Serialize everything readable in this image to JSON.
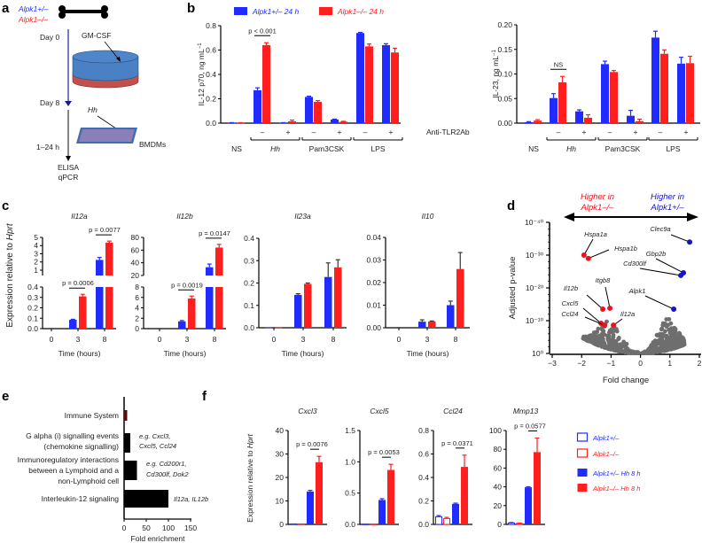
{
  "panel_labels": {
    "a": "a",
    "b": "b",
    "c": "c",
    "d": "d",
    "e": "e",
    "f": "f"
  },
  "colors": {
    "het": "#1f2bff",
    "ko": "#ff1f1f",
    "gray": "#6e6e6e",
    "axis": "#000000",
    "error_dark": "#333333",
    "dish_blue": "#4a80c4",
    "dish_red": "#c2504d",
    "timeline_purple": "#4d4fa3",
    "plate": "#8a7fb8",
    "immune_bar": "#5a0c0c",
    "volcano_red": "#e8141e",
    "volcano_blue": "#1414c8"
  },
  "panel_a": {
    "genotypes": [
      "Alpk1+/–",
      "Alpk1–/–"
    ],
    "day0": "Day 0",
    "gmcsf": "GM-CSF",
    "day8": "Day 8",
    "hh": "Hh",
    "bmdms": "BMDMs",
    "duration": "1–24 h",
    "readout1": "ELISA",
    "readout2": "qPCR"
  },
  "chart_data": [
    {
      "panel": "b",
      "type": "bar",
      "legend": [
        "Alpk1+/– 24 h",
        "Alpk1–/– 24 h"
      ],
      "treatment_label": "Anti-TLR2Ab",
      "charts": [
        {
          "ylabel": "IL-12 p70, ng mL",
          "ylabel_sup": "−1",
          "ylim": [
            0,
            0.8
          ],
          "yticks": [
            0,
            0.2,
            0.4,
            0.6,
            0.8
          ],
          "ytick_labels": [
            "0.0",
            "0.2",
            "0.4",
            "0.6",
            "0.8"
          ],
          "groups": [
            {
              "label": "NS",
              "treatments": [
                ""
              ]
            },
            {
              "label": "Hh",
              "treatments": [
                "–",
                "+"
              ]
            },
            {
              "label": "Pam3CSK",
              "treatments": [
                "–",
                "+"
              ]
            },
            {
              "label": "LPS",
              "treatments": [
                "–",
                "+"
              ]
            }
          ],
          "series": [
            {
              "name": "Alpk1+/– 24 h",
              "values": [
                0.003,
                0.27,
                0.003,
                0.215,
                0.03,
                0.74,
                0.64
              ],
              "errors": [
                0.001,
                0.02,
                0.001,
                0.006,
                0.003,
                0.005,
                0.012
              ]
            },
            {
              "name": "Alpk1–/– 24 h",
              "values": [
                0.003,
                0.64,
                0.015,
                0.175,
                0.012,
                0.63,
                0.58
              ],
              "errors": [
                0.001,
                0.02,
                0.01,
                0.01,
                0.003,
                0.02,
                0.035
              ]
            }
          ],
          "annotations": [
            {
              "text": "p < 0.001",
              "category": 1
            }
          ]
        },
        {
          "ylabel": "IL-23, ng mL",
          "ylabel_sup": "−1",
          "ylim": [
            0,
            0.2
          ],
          "yticks": [
            0,
            0.05,
            0.1,
            0.15,
            0.2
          ],
          "ytick_labels": [
            "0.00",
            "0.05",
            "0.10",
            "0.15",
            "0.20"
          ],
          "groups": [
            {
              "label": "NS",
              "treatments": [
                ""
              ]
            },
            {
              "label": "Hh",
              "treatments": [
                "–",
                "+"
              ]
            },
            {
              "label": "Pam3CSK",
              "treatments": [
                "–",
                "+"
              ]
            },
            {
              "label": "LPS",
              "treatments": [
                "–",
                "+"
              ]
            }
          ],
          "series": [
            {
              "name": "Alpk1+/– 24 h",
              "values": [
                0.002,
                0.051,
                0.024,
                0.12,
                0.015,
                0.174,
                0.121
              ],
              "errors": [
                0.001,
                0.009,
                0.003,
                0.006,
                0.011,
                0.013,
                0.013
              ]
            },
            {
              "name": "Alpk1–/– 24 h",
              "values": [
                0.005,
                0.083,
                0.011,
                0.104,
                0.004,
                0.141,
                0.122
              ],
              "errors": [
                0.002,
                0.012,
                0.006,
                0.003,
                0.004,
                0.008,
                0.014
              ]
            }
          ],
          "annotations": [
            {
              "text": "NS",
              "category": 1
            }
          ]
        }
      ]
    },
    {
      "panel": "c",
      "type": "bar",
      "ylabel": "Expression relative to ",
      "ylabel_italic": "Hprt",
      "xlabel": "Time (hours)",
      "x": [
        "0",
        "3",
        "8"
      ],
      "charts": [
        {
          "title": "Il12a",
          "y_segments": [
            {
              "range": [
                0,
                0.4
              ],
              "ticks": [
                0,
                0.1,
                0.2,
                0.3,
                0.4
              ],
              "tick_labels": [
                "0.0",
                "0.1",
                "0.2",
                "0.3",
                "0.4"
              ]
            },
            {
              "range": [
                1,
                5
              ],
              "ticks": [
                1,
                2,
                3,
                4,
                5
              ],
              "tick_labels": [
                "1",
                "2",
                "3",
                "4",
                "5"
              ]
            }
          ],
          "series": [
            {
              "values": [
                0,
                0.085,
                2.25
              ],
              "errors": [
                0,
                0.005,
                0.3
              ]
            },
            {
              "values": [
                0,
                0.31,
                4.35
              ],
              "errors": [
                0,
                0.02,
                0.2
              ]
            }
          ],
          "annotations": [
            {
              "text": "p = 0.0006",
              "x_index": 1
            },
            {
              "text": "p = 0.0077",
              "x_index": 2
            }
          ]
        },
        {
          "title": "Il12b",
          "y_segments": [
            {
              "range": [
                0,
                8
              ],
              "ticks": [
                0,
                2,
                4,
                6,
                8
              ],
              "tick_labels": [
                "0",
                "2",
                "4",
                "6",
                "8"
              ]
            },
            {
              "range": [
                20,
                80
              ],
              "ticks": [
                20,
                40,
                60,
                80
              ],
              "tick_labels": [
                "20",
                "40",
                "60",
                "80"
              ]
            }
          ],
          "series": [
            {
              "values": [
                0,
                1.4,
                33
              ],
              "errors": [
                0,
                0.15,
                5
              ]
            },
            {
              "values": [
                0,
                5.8,
                64
              ],
              "errors": [
                0,
                0.45,
                5
              ]
            }
          ],
          "annotations": [
            {
              "text": "p = 0.0019",
              "x_index": 1
            },
            {
              "text": "p = 0.0147",
              "x_index": 2
            }
          ]
        },
        {
          "title": "Il23a",
          "y_segments": [
            {
              "range": [
                0,
                0.4
              ],
              "ticks": [
                0,
                0.1,
                0.2,
                0.3,
                0.4
              ],
              "tick_labels": [
                "0.0",
                "0.1",
                "0.2",
                "0.3",
                "0.4"
              ]
            }
          ],
          "series": [
            {
              "values": [
                0.001,
                0.147,
                0.227
              ],
              "errors": [
                0,
                0.005,
                0.063
              ]
            },
            {
              "values": [
                0.001,
                0.196,
                0.27
              ],
              "errors": [
                0,
                0.004,
                0.034
              ]
            }
          ],
          "annotations": []
        },
        {
          "title": "Il10",
          "y_segments": [
            {
              "range": [
                0,
                0.04
              ],
              "ticks": [
                0,
                0.01,
                0.02,
                0.03,
                0.04
              ],
              "tick_labels": [
                "0.00",
                "0.01",
                "0.02",
                "0.03",
                "0.04"
              ]
            }
          ],
          "series": [
            {
              "values": [
                0,
                0.0027,
                0.01
              ],
              "errors": [
                0,
                0.0008,
                0.0018
              ]
            },
            {
              "values": [
                0,
                0.0028,
                0.026
              ],
              "errors": [
                0,
                0.0002,
                0.0073
              ]
            }
          ],
          "annotations": []
        }
      ]
    },
    {
      "panel": "d",
      "type": "scatter",
      "xlabel": "Fold change",
      "ylabel": "Adjusted p-value",
      "xlim": [
        -3,
        2
      ],
      "xticks": [
        -3,
        -2,
        -1,
        0,
        1,
        2
      ],
      "xtick_labels": [
        "−3",
        "−2",
        "−1",
        "0",
        "1",
        "2"
      ],
      "ylim_neglog10": [
        0,
        40
      ],
      "yticks_neglog10": [
        0,
        10,
        20,
        30,
        40
      ],
      "ytick_labels": [
        "10⁰",
        "10⁻¹⁰",
        "10⁻²⁰",
        "10⁻³⁰",
        "10⁻⁴⁰"
      ],
      "direction_left": [
        "Higher in",
        "Alpk1–/–"
      ],
      "direction_right": [
        "Higher in",
        "Alpk1+/–"
      ],
      "highlighted": [
        {
          "gene": "Hspa1a",
          "fold_change": -1.92,
          "neglog10_p": 30,
          "side": "ko"
        },
        {
          "gene": "Hspa1b",
          "fold_change": -1.77,
          "neglog10_p": 29,
          "side": "ko"
        },
        {
          "gene": "Il12b",
          "fold_change": -1.28,
          "neglog10_p": 13.5,
          "side": "ko"
        },
        {
          "gene": "Itgb8",
          "fold_change": -1.04,
          "neglog10_p": 13.8,
          "side": "ko"
        },
        {
          "gene": "Cxcl5",
          "fold_change": -1.34,
          "neglog10_p": 9.2,
          "side": "ko"
        },
        {
          "gene": "Ccl24",
          "fold_change": -1.22,
          "neglog10_p": 8.6,
          "side": "ko"
        },
        {
          "gene": "Il12a",
          "fold_change": -0.92,
          "neglog10_p": 8.6,
          "side": "ko"
        },
        {
          "gene": "Clec9a",
          "fold_change": 1.67,
          "neglog10_p": 34,
          "side": "het"
        },
        {
          "gene": "Gbp2b",
          "fold_change": 1.46,
          "neglog10_p": 24.6,
          "side": "het"
        },
        {
          "gene": "Cd300lf",
          "fold_change": 1.37,
          "neglog10_p": 23.8,
          "side": "het"
        },
        {
          "gene": "Alpk1",
          "fold_change": 1.13,
          "neglog10_p": 13.5,
          "side": "het"
        }
      ]
    },
    {
      "panel": "e",
      "type": "bar",
      "orientation": "horizontal",
      "xlabel": "Fold enrichment",
      "xlim": [
        0,
        150
      ],
      "xticks": [
        0,
        50,
        100,
        150
      ],
      "xtick_labels": [
        "0",
        "50",
        "100",
        "150"
      ],
      "categories": [
        {
          "lines": [
            "Immune System"
          ],
          "value": 7,
          "note": []
        },
        {
          "lines": [
            "G alpha (i) signalling events",
            "(chemokine signalling)"
          ],
          "value": 14,
          "note": [
            "e.g. Cxcl3,",
            "Cxcl5, Ccl24"
          ]
        },
        {
          "lines": [
            "Immunoregulatory interactions",
            "between a Lymphoid and a",
            "non-Lymphoid cell"
          ],
          "value": 29,
          "note": [
            "e.g. Cd200r1,",
            "Cd300lf, Dok2"
          ]
        },
        {
          "lines": [
            "Interleukin-12 signaling"
          ],
          "value": 100,
          "note": [
            "Il12a, IL12b"
          ]
        }
      ]
    },
    {
      "panel": "f",
      "type": "bar",
      "ylabel": "Expression relative to ",
      "ylabel_italic": "Hprt",
      "legend": [
        "Alpk1+/–",
        "Alpk1–/–",
        "Alpk1+/– Hh 8 h",
        "Alpk1–/– Hh 8 h"
      ],
      "charts": [
        {
          "title": "Cxcl3",
          "ylim": [
            0,
            40
          ],
          "yticks": [
            0,
            10,
            20,
            30,
            40
          ],
          "ytick_labels": [
            "0",
            "10",
            "20",
            "30",
            "40"
          ],
          "values": [
            0.2,
            0.2,
            14,
            26.5
          ],
          "errors": [
            0,
            0,
            0.5,
            2.5
          ],
          "annotation": "p = 0.0076"
        },
        {
          "title": "Cxcl5",
          "ylim": [
            0,
            1.5
          ],
          "yticks": [
            0,
            0.5,
            1.0,
            1.5
          ],
          "ytick_labels": [
            "0.0",
            "0.5",
            "1.0",
            "1.5"
          ],
          "values": [
            0.005,
            0.005,
            0.39,
            0.87
          ],
          "errors": [
            0,
            0,
            0.02,
            0.09
          ],
          "annotation": "p = 0.0053"
        },
        {
          "title": "Ccl24",
          "ylim": [
            0,
            0.8
          ],
          "yticks": [
            0,
            0.2,
            0.4,
            0.6,
            0.8
          ],
          "ytick_labels": [
            "0.0",
            "0.2",
            "0.4",
            "0.6",
            "0.8"
          ],
          "values": [
            0.065,
            0.05,
            0.175,
            0.49
          ],
          "errors": [
            0.01,
            0.01,
            0.006,
            0.1
          ],
          "annotation": "p = 0.0371"
        },
        {
          "title": "Mmp13",
          "ylim": [
            0,
            100
          ],
          "yticks": [
            0,
            20,
            40,
            60,
            80,
            100
          ],
          "ytick_labels": [
            "0",
            "20",
            "40",
            "60",
            "80",
            "100"
          ],
          "values": [
            1.5,
            1.0,
            39.5,
            77
          ],
          "errors": [
            0.5,
            0.5,
            0.6,
            15
          ],
          "annotation": "p = 0.0577"
        }
      ]
    }
  ]
}
